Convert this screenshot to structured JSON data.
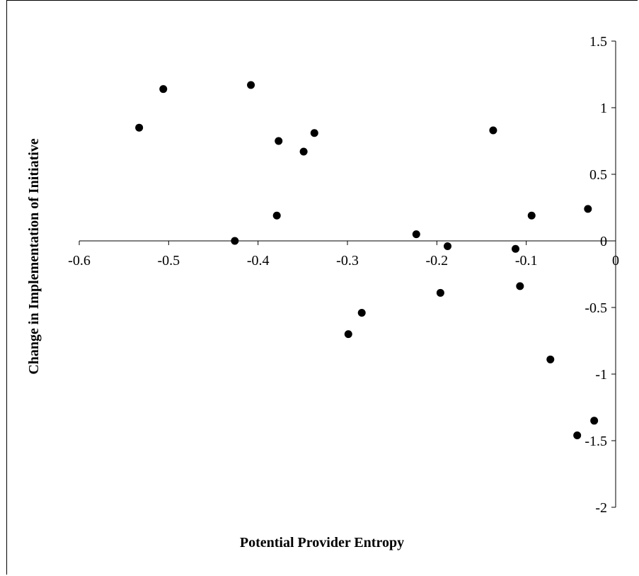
{
  "chart_data": {
    "type": "scatter",
    "title": "",
    "xlabel": "Potential Provider Entropy",
    "ylabel": "Change in Implementation of Initiative",
    "xlim": [
      -0.6,
      0
    ],
    "ylim": [
      -2,
      1.5
    ],
    "x_ticks": [
      "-0.6",
      "-0.5",
      "-0.4",
      "-0.3",
      "-0.2",
      "-0.1",
      "0"
    ],
    "y_ticks": [
      "1.5",
      "1",
      "0.5",
      "0",
      "-0.5",
      "-1",
      "-1.5",
      "-2"
    ],
    "grid": false,
    "legend": "none",
    "marker_color": "#000000",
    "points": [
      {
        "x": -0.533,
        "y": 0.85
      },
      {
        "x": -0.506,
        "y": 1.14
      },
      {
        "x": -0.408,
        "y": 1.17
      },
      {
        "x": -0.377,
        "y": 0.75
      },
      {
        "x": -0.337,
        "y": 0.81
      },
      {
        "x": -0.349,
        "y": 0.67
      },
      {
        "x": -0.379,
        "y": 0.19
      },
      {
        "x": -0.426,
        "y": 0.0
      },
      {
        "x": -0.137,
        "y": 0.83
      },
      {
        "x": -0.094,
        "y": 0.19
      },
      {
        "x": -0.031,
        "y": 0.24
      },
      {
        "x": -0.223,
        "y": 0.05
      },
      {
        "x": -0.188,
        "y": -0.04
      },
      {
        "x": -0.112,
        "y": -0.06
      },
      {
        "x": -0.196,
        "y": -0.39
      },
      {
        "x": -0.107,
        "y": -0.34
      },
      {
        "x": -0.284,
        "y": -0.54
      },
      {
        "x": -0.299,
        "y": -0.7
      },
      {
        "x": -0.073,
        "y": -0.89
      },
      {
        "x": -0.024,
        "y": -1.35
      },
      {
        "x": -0.043,
        "y": -1.46
      }
    ]
  }
}
